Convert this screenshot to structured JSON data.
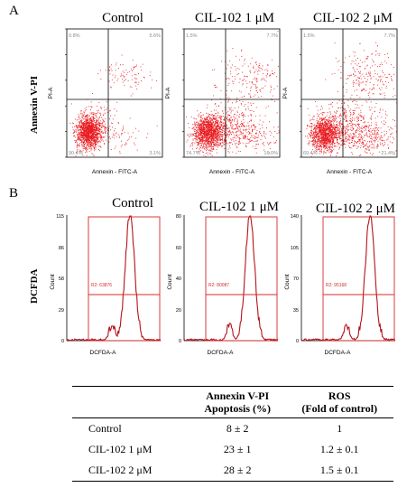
{
  "panel_a": {
    "letter": "A",
    "row_label": "Annexin V-PI",
    "xlabel": "Annexin - FITC-A",
    "ylabel": "PI-A",
    "plots": [
      {
        "title": "Control",
        "quadrants": {
          "ul": "0.8%",
          "ur": "5.6%",
          "ll": "90.4%",
          "lr": "3.1%"
        }
      },
      {
        "title": "CIL-102 1 μM",
        "quadrants": {
          "ul": "1.5%",
          "ur": "7.7%",
          "ll": "74.7%",
          "lr": "16.0%"
        }
      },
      {
        "title": "CIL-102 2 μM",
        "quadrants": {
          "ul": "1.5%",
          "ur": "7.7%",
          "ll": "69.4%",
          "lr": "21.4%"
        }
      }
    ]
  },
  "panel_b": {
    "letter": "B",
    "row_label": "DCFDA",
    "xlabel": "DCFDA-A",
    "ylabel": "Count",
    "plots": [
      {
        "title": "Control",
        "gate": "R2: 63876",
        "ymax": "115",
        "yticks": [
          "115",
          "86",
          "58",
          "29",
          "0"
        ]
      },
      {
        "title": "CIL-102 1 μM",
        "gate": "R2: 80087",
        "ymax": "80",
        "yticks": [
          "80",
          "60",
          "40",
          "20",
          "0"
        ]
      },
      {
        "title": "CIL-102 2 μM",
        "gate": "R2: 95168",
        "ymax": "140",
        "yticks": [
          "140",
          "105",
          "70",
          "35",
          "0"
        ]
      }
    ]
  },
  "table": {
    "header": {
      "col1_line1": "Annexin V-PI",
      "col1_line2": "Apoptosis (%)",
      "col2_line1": "ROS",
      "col2_line2": "(Fold of control)"
    },
    "rows": [
      {
        "label": "Control",
        "apoptosis": "8 ± 2",
        "ros": "1"
      },
      {
        "label": "CIL-102 1 μM",
        "apoptosis": "23 ± 1",
        "ros": "1.2 ± 0.1"
      },
      {
        "label": "CIL-102 2 μM",
        "apoptosis": "28 ± 2",
        "ros": "1.5 ± 0.1"
      }
    ]
  },
  "colors": {
    "dots": "#e8191f",
    "hist": "#b4141a",
    "gate": "#d42a2a",
    "quad_text": "#8a8a8a"
  }
}
